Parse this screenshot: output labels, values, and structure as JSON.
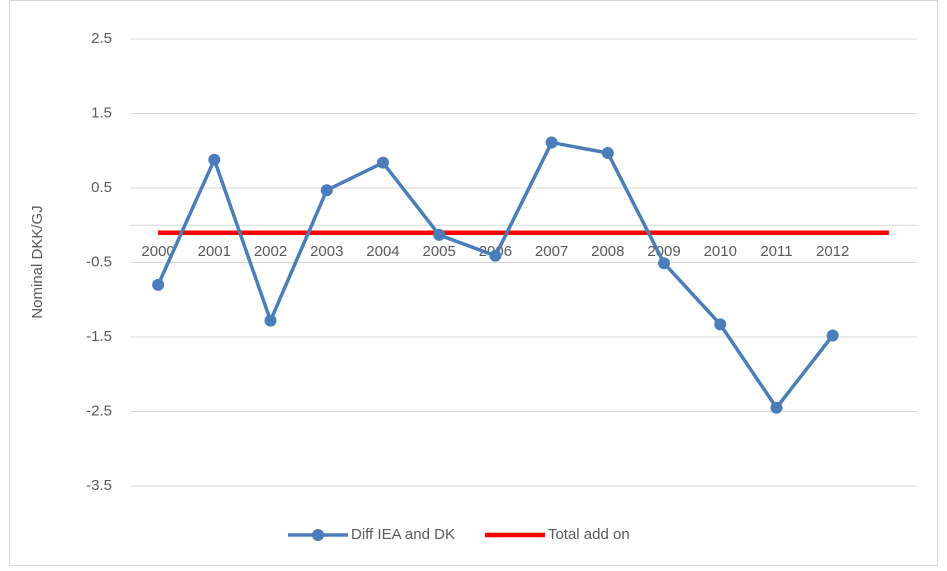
{
  "chart_data": {
    "type": "line",
    "y_label": "Nominal DKK/GJ",
    "categories": [
      "2000",
      "2001",
      "2002",
      "2003",
      "2004",
      "2005",
      "2006",
      "2007",
      "2008",
      "2009",
      "2010",
      "2011",
      "2012",
      null
    ],
    "series": [
      {
        "name": "Diff IEA and DK",
        "color": "#4a7ebb",
        "marker": true,
        "values": [
          -0.8,
          0.88,
          -1.28,
          0.47,
          0.84,
          -0.13,
          -0.41,
          1.11,
          0.97,
          -0.51,
          -1.33,
          -2.45,
          -1.48,
          null
        ]
      },
      {
        "name": "Total add on",
        "color": "#ff0000",
        "marker": false,
        "values": [
          -0.1,
          -0.1,
          -0.1,
          -0.1,
          -0.1,
          -0.1,
          -0.1,
          -0.1,
          -0.1,
          -0.1,
          -0.1,
          -0.1,
          -0.1,
          -0.1
        ]
      }
    ],
    "ylim": [
      -3.5,
      2.5
    ],
    "yticks": [
      -3.5,
      -2.5,
      -1.5,
      -0.5,
      0.5,
      1.5,
      2.5
    ],
    "grid": true,
    "legend": "bottom"
  }
}
